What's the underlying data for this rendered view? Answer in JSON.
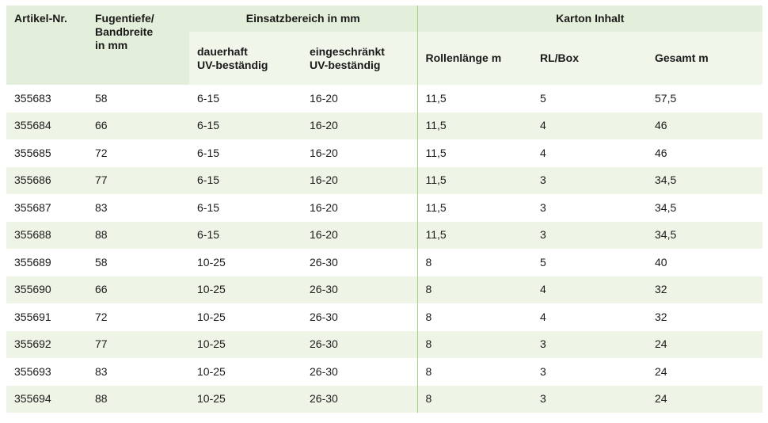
{
  "headers": {
    "artikel": "Artikel-Nr.",
    "fugentiefe": [
      "Fugentiefe/",
      "Bandbreite",
      "in mm"
    ],
    "einsatzbereich": "Einsatzbereich in mm",
    "dauerhaft": [
      "dauerhaft",
      "UV-beständig"
    ],
    "eingeschraenkt": [
      "eingeschränkt",
      "UV-beständig"
    ],
    "karton": "Karton Inhalt",
    "rollenlaenge": "Rollenlänge m",
    "rlbox": "RL/Box",
    "gesamt": "Gesamt m"
  },
  "rows": [
    [
      "355683",
      "58",
      "6-15",
      "16-20",
      "11,5",
      "5",
      "57,5"
    ],
    [
      "355684",
      "66",
      "6-15",
      "16-20",
      "11,5",
      "4",
      "46"
    ],
    [
      "355685",
      "72",
      "6-15",
      "16-20",
      "11,5",
      "4",
      "46"
    ],
    [
      "355686",
      "77",
      "6-15",
      "16-20",
      "11,5",
      "3",
      "34,5"
    ],
    [
      "355687",
      "83",
      "6-15",
      "16-20",
      "11,5",
      "3",
      "34,5"
    ],
    [
      "355688",
      "88",
      "6-15",
      "16-20",
      "11,5",
      "3",
      "34,5"
    ],
    [
      "355689",
      "58",
      "10-25",
      "26-30",
      "8",
      "5",
      "40"
    ],
    [
      "355690",
      "66",
      "10-25",
      "26-30",
      "8",
      "4",
      "32"
    ],
    [
      "355691",
      "72",
      "10-25",
      "26-30",
      "8",
      "4",
      "32"
    ],
    [
      "355692",
      "77",
      "10-25",
      "26-30",
      "8",
      "3",
      "24"
    ],
    [
      "355693",
      "83",
      "10-25",
      "26-30",
      "8",
      "3",
      "24"
    ],
    [
      "355694",
      "88",
      "10-25",
      "26-30",
      "8",
      "3",
      "24"
    ]
  ]
}
